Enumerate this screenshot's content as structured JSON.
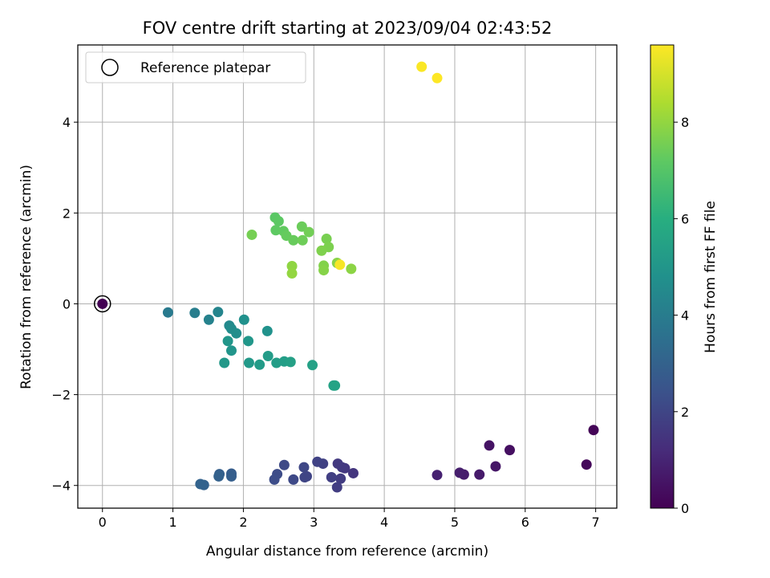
{
  "chart_data": {
    "type": "scatter",
    "title": "FOV centre drift starting at 2023/09/04 02:43:52",
    "xlabel": "Angular distance from reference (arcmin)",
    "ylabel": "Rotation from reference (arcmin)",
    "xlim": [
      -0.35,
      7.3
    ],
    "ylim": [
      -4.5,
      5.7
    ],
    "xticks": [
      "0",
      "1",
      "2",
      "3",
      "4",
      "5",
      "6",
      "7"
    ],
    "yticks": [
      "−4",
      "−2",
      "0",
      "2",
      "4"
    ],
    "grid": true,
    "legend": {
      "placement": "top-left",
      "entries": [
        "Reference platepar"
      ]
    },
    "reference_point": {
      "x": 0,
      "y": 0
    },
    "colorbar": {
      "label": "Hours from first FF file",
      "range": [
        0,
        9.6
      ],
      "ticks": [
        "0",
        "2",
        "4",
        "6",
        "8"
      ],
      "colormap": "viridis"
    },
    "series": [
      {
        "points": [
          [
            0.0,
            0.0,
            0.0
          ],
          [
            6.97,
            -2.78,
            0.1
          ],
          [
            6.87,
            -3.54,
            0.2
          ],
          [
            5.78,
            -3.22,
            0.4
          ],
          [
            5.49,
            -3.12,
            0.5
          ],
          [
            5.58,
            -3.58,
            0.6
          ],
          [
            5.35,
            -3.76,
            0.7
          ],
          [
            5.13,
            -3.76,
            0.75
          ],
          [
            5.07,
            -3.72,
            0.8
          ],
          [
            4.75,
            -3.77,
            0.9
          ],
          [
            3.56,
            -3.73,
            1.5
          ],
          [
            3.44,
            -3.62,
            1.55
          ],
          [
            3.4,
            -3.6,
            1.6
          ],
          [
            3.34,
            -3.52,
            1.65
          ],
          [
            3.38,
            -3.85,
            1.7
          ],
          [
            3.33,
            -4.04,
            1.75
          ],
          [
            3.25,
            -3.82,
            1.8
          ],
          [
            3.13,
            -3.52,
            1.85
          ],
          [
            3.05,
            -3.48,
            1.9
          ],
          [
            2.9,
            -3.8,
            1.95
          ],
          [
            2.87,
            -3.82,
            2.0
          ],
          [
            2.86,
            -3.6,
            2.05
          ],
          [
            2.71,
            -3.87,
            2.1
          ],
          [
            2.58,
            -3.55,
            2.15
          ],
          [
            2.48,
            -3.75,
            2.2
          ],
          [
            2.44,
            -3.87,
            2.25
          ],
          [
            1.83,
            -3.74,
            2.8
          ],
          [
            1.83,
            -3.8,
            2.85
          ],
          [
            1.66,
            -3.75,
            2.9
          ],
          [
            1.65,
            -3.8,
            2.95
          ],
          [
            1.44,
            -3.99,
            3.0
          ],
          [
            1.39,
            -3.97,
            3.05
          ],
          [
            0.93,
            -0.19,
            3.9
          ],
          [
            1.31,
            -0.2,
            4.05
          ],
          [
            1.51,
            -0.35,
            4.2
          ],
          [
            1.64,
            -0.18,
            4.35
          ],
          [
            1.8,
            -0.48,
            4.5
          ],
          [
            1.83,
            -0.55,
            4.6
          ],
          [
            1.9,
            -0.65,
            4.7
          ],
          [
            2.01,
            -0.35,
            4.8
          ],
          [
            2.34,
            -0.6,
            4.85
          ],
          [
            1.83,
            -1.03,
            4.95
          ],
          [
            1.78,
            -0.82,
            5.0
          ],
          [
            2.07,
            -0.82,
            5.05
          ],
          [
            1.73,
            -1.3,
            5.1
          ],
          [
            2.08,
            -1.3,
            5.15
          ],
          [
            2.23,
            -1.34,
            5.2
          ],
          [
            2.35,
            -1.15,
            5.25
          ],
          [
            2.47,
            -1.3,
            5.3
          ],
          [
            2.58,
            -1.27,
            5.35
          ],
          [
            2.67,
            -1.28,
            5.4
          ],
          [
            2.98,
            -1.35,
            5.45
          ],
          [
            3.28,
            -1.8,
            5.5
          ],
          [
            3.3,
            -1.8,
            5.55
          ],
          [
            2.45,
            1.9,
            7.1
          ],
          [
            2.5,
            1.82,
            7.15
          ],
          [
            2.46,
            1.62,
            7.2
          ],
          [
            2.57,
            1.6,
            7.25
          ],
          [
            2.61,
            1.5,
            7.3
          ],
          [
            2.71,
            1.4,
            7.35
          ],
          [
            2.83,
            1.7,
            7.4
          ],
          [
            2.84,
            1.4,
            7.45
          ],
          [
            2.93,
            1.58,
            7.5
          ],
          [
            2.12,
            1.52,
            7.55
          ],
          [
            3.18,
            1.43,
            7.6
          ],
          [
            3.21,
            1.25,
            7.65
          ],
          [
            3.11,
            1.17,
            7.7
          ],
          [
            3.14,
            0.84,
            7.75
          ],
          [
            3.14,
            0.74,
            7.8
          ],
          [
            3.33,
            0.9,
            7.85
          ],
          [
            3.53,
            0.77,
            7.9
          ],
          [
            2.69,
            0.83,
            7.95
          ],
          [
            2.69,
            0.67,
            8.0
          ],
          [
            3.37,
            0.86,
            9.5
          ],
          [
            4.53,
            5.22,
            9.55
          ],
          [
            4.75,
            4.97,
            9.6
          ]
        ]
      }
    ]
  }
}
